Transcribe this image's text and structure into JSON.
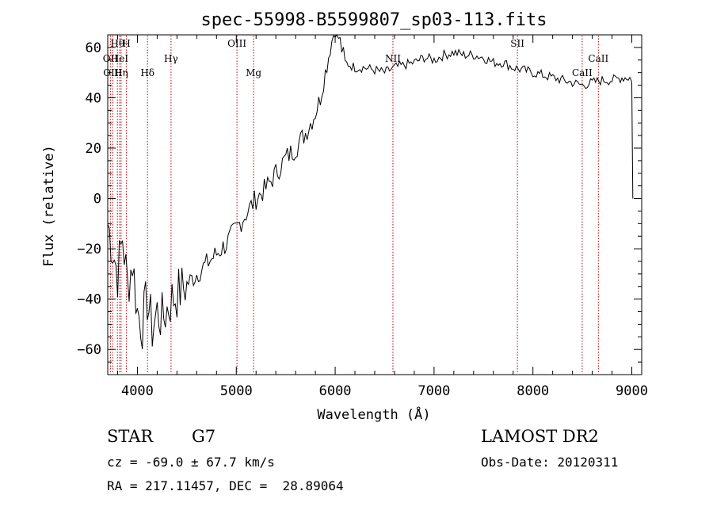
{
  "chart_data": {
    "type": "line",
    "title": "spec-55998-B5599807_sp03-113.fits",
    "xlabel": "Wavelength (Å)",
    "ylabel": "Flux (relative)",
    "xlim": [
      3700,
      9100
    ],
    "ylim": [
      -70,
      65
    ],
    "x_ticks": [
      4000,
      5000,
      6000,
      7000,
      8000,
      9000
    ],
    "y_ticks": [
      -60,
      -40,
      -20,
      0,
      20,
      40,
      60
    ],
    "grid": false,
    "series": [
      {
        "x": [
          3700,
          3750,
          3800,
          3850,
          3900,
          3950,
          4000,
          4050,
          4100,
          4150,
          4200,
          4250,
          4300,
          4350,
          4400,
          4500,
          4600,
          4700,
          4800,
          4900,
          5000,
          5100,
          5200,
          5300,
          5400,
          5500,
          5600,
          5700,
          5800,
          5850,
          5900,
          5950,
          6000,
          6050,
          6100,
          6200,
          6300,
          6400,
          6500,
          6600,
          6700,
          6800,
          6900,
          7000,
          7100,
          7200,
          7300,
          7400,
          7500,
          7600,
          7700,
          7800,
          7900,
          8000,
          8100,
          8200,
          8300,
          8400,
          8500,
          8600,
          8700,
          8800,
          8900,
          8980,
          9000,
          9010
        ],
        "y": [
          -10,
          -20,
          -30,
          -15,
          -35,
          -25,
          -45,
          -50,
          -40,
          -52,
          -45,
          -48,
          -44,
          -40,
          -38,
          -34,
          -30,
          -26,
          -22,
          -18,
          -12,
          -6,
          0,
          4,
          10,
          16,
          20,
          26,
          34,
          40,
          50,
          60,
          68,
          62,
          54,
          52,
          52,
          51,
          50,
          52,
          53,
          54,
          56,
          55,
          57,
          58,
          57,
          57,
          56,
          54,
          54,
          52,
          51,
          50,
          49,
          48,
          47,
          46,
          45,
          46,
          47,
          47,
          48,
          48,
          46,
          0
        ]
      }
    ],
    "lines": [
      {
        "label": "Hθ",
        "x": 3798,
        "row": 0
      },
      {
        "label": "H",
        "x": 3889,
        "row": 0
      },
      {
        "label": "OII",
        "x": 3727,
        "row": 1
      },
      {
        "label": "HeI",
        "x": 3820,
        "row": 1
      },
      {
        "label": "OIII",
        "x": 3750,
        "row": 2
      },
      {
        "label": "Hη",
        "x": 3835,
        "row": 2
      },
      {
        "label": "Hδ",
        "x": 4102,
        "row": 2
      },
      {
        "label": "Hγ",
        "x": 4340,
        "row": 1
      },
      {
        "label": "OIII",
        "x": 5007,
        "row": 0
      },
      {
        "label": "Mg",
        "x": 5175,
        "row": 2
      },
      {
        "label": "NII",
        "x": 6584,
        "row": 1
      },
      {
        "label": "SII",
        "x": 7843,
        "row": 0
      },
      {
        "label": "CaII",
        "x": 8498,
        "row": 2
      },
      {
        "label": "CaII",
        "x": 8662,
        "row": 1
      }
    ]
  },
  "info": {
    "object_class": "STAR",
    "subclass": "G7",
    "survey": "LAMOST DR2",
    "cz": "cz = -69.0 ± 67.7 km/s",
    "obs_date": "Obs-Date: 20120311",
    "coords": "RA = 217.11457, DEC =  28.89064"
  }
}
